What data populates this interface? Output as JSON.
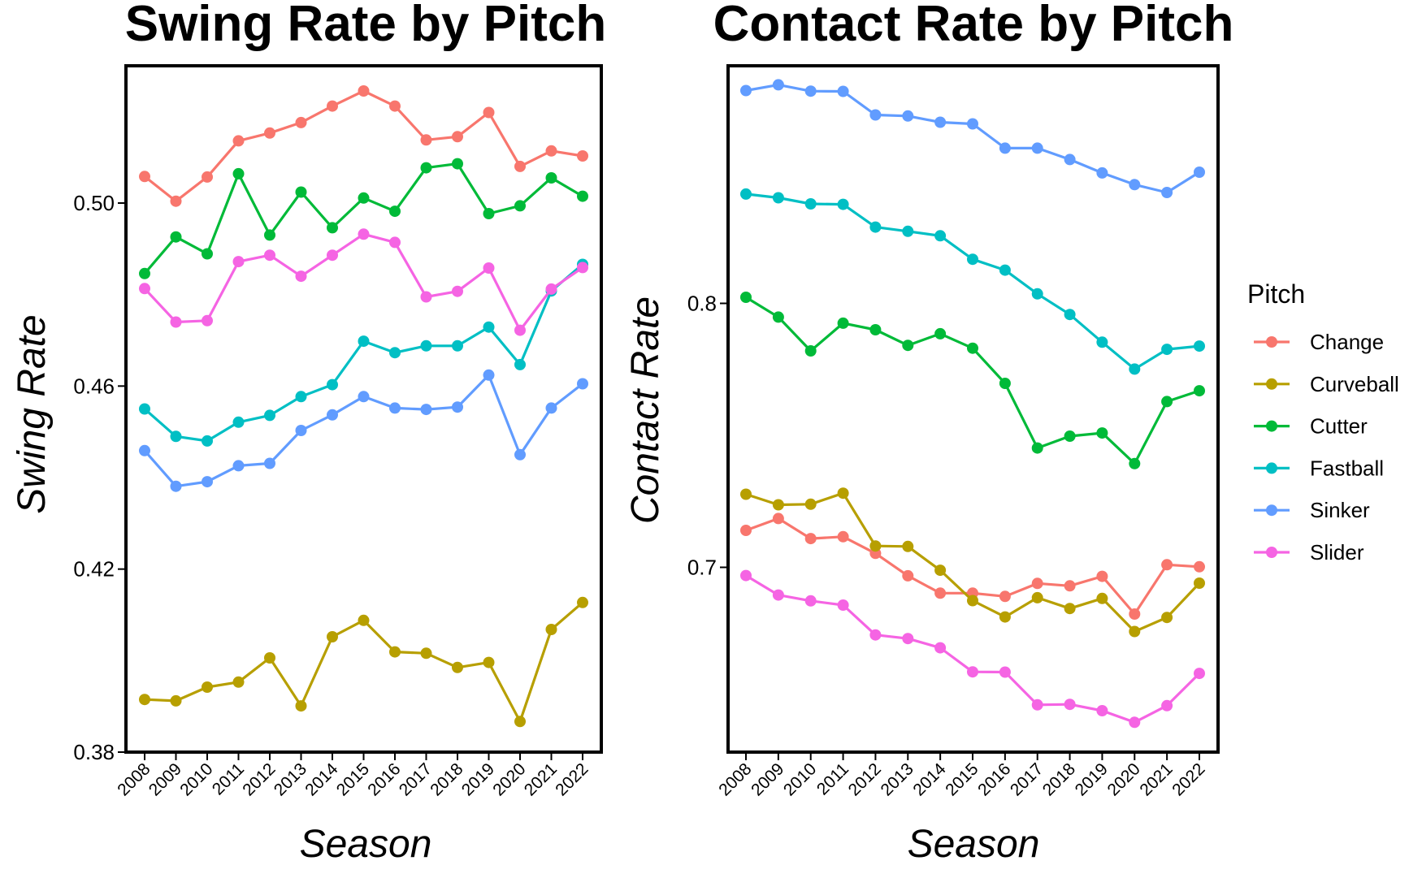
{
  "chart_data": [
    {
      "type": "line",
      "title": "Swing Rate by Pitch",
      "xlabel": "Season",
      "ylabel": "Swing Rate",
      "ylim": [
        0.38,
        0.53
      ],
      "yticks": [
        "0.38",
        "0.42",
        "0.46",
        "0.50"
      ],
      "x": [
        "2008",
        "2009",
        "2010",
        "2011",
        "2012",
        "2013",
        "2014",
        "2015",
        "2016",
        "2017",
        "2018",
        "2019",
        "2020",
        "2021",
        "2022"
      ],
      "grid": false,
      "series": [
        {
          "name": "Change",
          "color": "#F8766D",
          "values": [
            0.5058,
            0.5004,
            0.5057,
            0.5136,
            0.5153,
            0.5176,
            0.5212,
            0.5245,
            0.5212,
            0.5138,
            0.5145,
            0.5198,
            0.508,
            0.5114,
            0.5103
          ]
        },
        {
          "name": "Curveball",
          "color": "#B79F00",
          "values": [
            0.3915,
            0.3912,
            0.3942,
            0.3953,
            0.4006,
            0.3901,
            0.4052,
            0.4088,
            0.4019,
            0.4016,
            0.3985,
            0.3996,
            0.3867,
            0.4068,
            0.4127
          ]
        },
        {
          "name": "Cutter",
          "color": "#00BA38",
          "values": [
            0.4846,
            0.4926,
            0.4889,
            0.5064,
            0.493,
            0.5024,
            0.4946,
            0.5011,
            0.4982,
            0.5077,
            0.5086,
            0.4977,
            0.4994,
            0.5055,
            0.5015
          ]
        },
        {
          "name": "Fastball",
          "color": "#00BFC4",
          "values": [
            0.455,
            0.449,
            0.448,
            0.4521,
            0.4536,
            0.4577,
            0.4603,
            0.4698,
            0.4673,
            0.4688,
            0.4688,
            0.4729,
            0.4647,
            0.4808,
            0.4866
          ]
        },
        {
          "name": "Sinker",
          "color": "#619CFF",
          "values": [
            0.4459,
            0.4381,
            0.4391,
            0.4426,
            0.4431,
            0.4503,
            0.4537,
            0.4577,
            0.4552,
            0.4549,
            0.4554,
            0.4624,
            0.445,
            0.4552,
            0.4605
          ]
        },
        {
          "name": "Slider",
          "color": "#F564E3",
          "values": [
            0.4813,
            0.474,
            0.4743,
            0.4872,
            0.4886,
            0.484,
            0.4886,
            0.4932,
            0.4914,
            0.4795,
            0.4807,
            0.4858,
            0.4722,
            0.4812,
            0.4859
          ]
        }
      ]
    },
    {
      "type": "line",
      "title": "Contact Rate by Pitch",
      "xlabel": "Season",
      "ylabel": "Contact Rate",
      "ylim": [
        0.63,
        0.89
      ],
      "yticks": [
        "0.7",
        "0.8"
      ],
      "x": [
        "2008",
        "2009",
        "2010",
        "2011",
        "2012",
        "2013",
        "2014",
        "2015",
        "2016",
        "2017",
        "2018",
        "2019",
        "2020",
        "2021",
        "2022"
      ],
      "grid": false,
      "series": [
        {
          "name": "Change",
          "color": "#F8766D",
          "values": [
            0.714,
            0.7185,
            0.7109,
            0.7116,
            0.7053,
            0.6968,
            0.6902,
            0.6902,
            0.689,
            0.6939,
            0.693,
            0.6966,
            0.6823,
            0.701,
            0.7002
          ]
        },
        {
          "name": "Curveball",
          "color": "#B79F00",
          "values": [
            0.7277,
            0.7237,
            0.7239,
            0.7281,
            0.7081,
            0.7079,
            0.6989,
            0.6874,
            0.6812,
            0.6885,
            0.6844,
            0.6882,
            0.6757,
            0.681,
            0.694
          ]
        },
        {
          "name": "Cutter",
          "color": "#00BA38",
          "values": [
            0.8023,
            0.7948,
            0.782,
            0.7925,
            0.79,
            0.7841,
            0.7885,
            0.783,
            0.7697,
            0.7452,
            0.7497,
            0.7509,
            0.7393,
            0.7628,
            0.7669
          ]
        },
        {
          "name": "Fastball",
          "color": "#00BFC4",
          "values": [
            0.8414,
            0.84,
            0.8377,
            0.8375,
            0.8289,
            0.8273,
            0.8256,
            0.8167,
            0.8126,
            0.8036,
            0.7958,
            0.7853,
            0.7751,
            0.7826,
            0.7838
          ]
        },
        {
          "name": "Sinker",
          "color": "#619CFF",
          "values": [
            0.8806,
            0.8828,
            0.8804,
            0.8803,
            0.8714,
            0.871,
            0.8686,
            0.868,
            0.8588,
            0.8588,
            0.8545,
            0.8494,
            0.845,
            0.842,
            0.8497
          ]
        },
        {
          "name": "Slider",
          "color": "#F564E3",
          "values": [
            0.6969,
            0.6895,
            0.6873,
            0.6857,
            0.6744,
            0.673,
            0.6695,
            0.6604,
            0.6603,
            0.6479,
            0.6481,
            0.6457,
            0.6413,
            0.6476,
            0.6598
          ]
        }
      ]
    }
  ],
  "legend": {
    "title": "Pitch",
    "items": [
      {
        "name": "Change",
        "color": "#F8766D"
      },
      {
        "name": "Curveball",
        "color": "#B79F00"
      },
      {
        "name": "Cutter",
        "color": "#00BA38"
      },
      {
        "name": "Fastball",
        "color": "#00BFC4"
      },
      {
        "name": "Sinker",
        "color": "#619CFF"
      },
      {
        "name": "Slider",
        "color": "#F564E3"
      }
    ]
  }
}
